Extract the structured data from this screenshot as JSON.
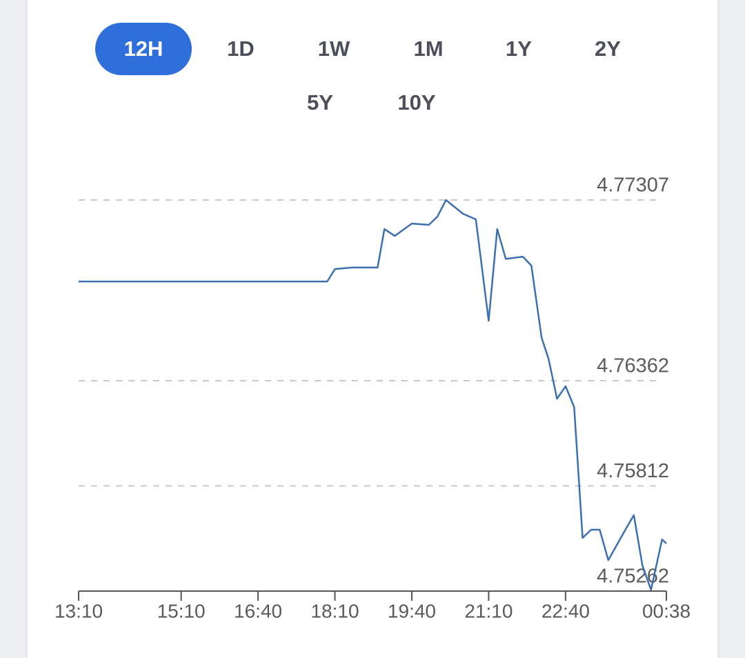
{
  "range_buttons": [
    "12H",
    "1D",
    "1W",
    "1M",
    "1Y",
    "2Y",
    "5Y",
    "10Y"
  ],
  "selected_range": "12H",
  "chart_data": {
    "type": "line",
    "x": [
      "13:10",
      "18:01",
      "18:10",
      "18:30",
      "19:00",
      "19:08",
      "19:20",
      "19:40",
      "20:00",
      "20:10",
      "20:20",
      "20:40",
      "20:55",
      "21:10",
      "21:20",
      "21:30",
      "21:50",
      "22:00",
      "22:12",
      "22:20",
      "22:30",
      "22:40",
      "22:50",
      "23:00",
      "23:10",
      "23:20",
      "23:30",
      "23:50",
      "00:00",
      "00:10",
      "00:20",
      "00:33",
      "00:38"
    ],
    "series": [
      {
        "color": "#3b6fb0",
        "values": [
          4.76881,
          4.76881,
          4.76946,
          4.76954,
          4.76954,
          4.77155,
          4.77119,
          4.77184,
          4.77177,
          4.7722,
          4.77307,
          4.77235,
          4.77206,
          4.76676,
          4.77155,
          4.76999,
          4.77011,
          4.76964,
          4.76586,
          4.76478,
          4.76268,
          4.76333,
          4.76225,
          4.7554,
          4.75583,
          4.75583,
          4.75424,
          4.75583,
          4.75659,
          4.75395,
          4.75269,
          4.75532,
          4.75511
        ]
      }
    ],
    "xlim": [
      "13:10",
      "00:38"
    ],
    "xticks": [
      "13:10",
      "15:10",
      "16:40",
      "18:10",
      "19:40",
      "21:10",
      "22:40",
      "00:38"
    ],
    "ylim": [
      4.75262,
      4.77307
    ],
    "yticks": [
      4.75262,
      4.75812,
      4.76362,
      4.77307
    ],
    "grid": true
  }
}
